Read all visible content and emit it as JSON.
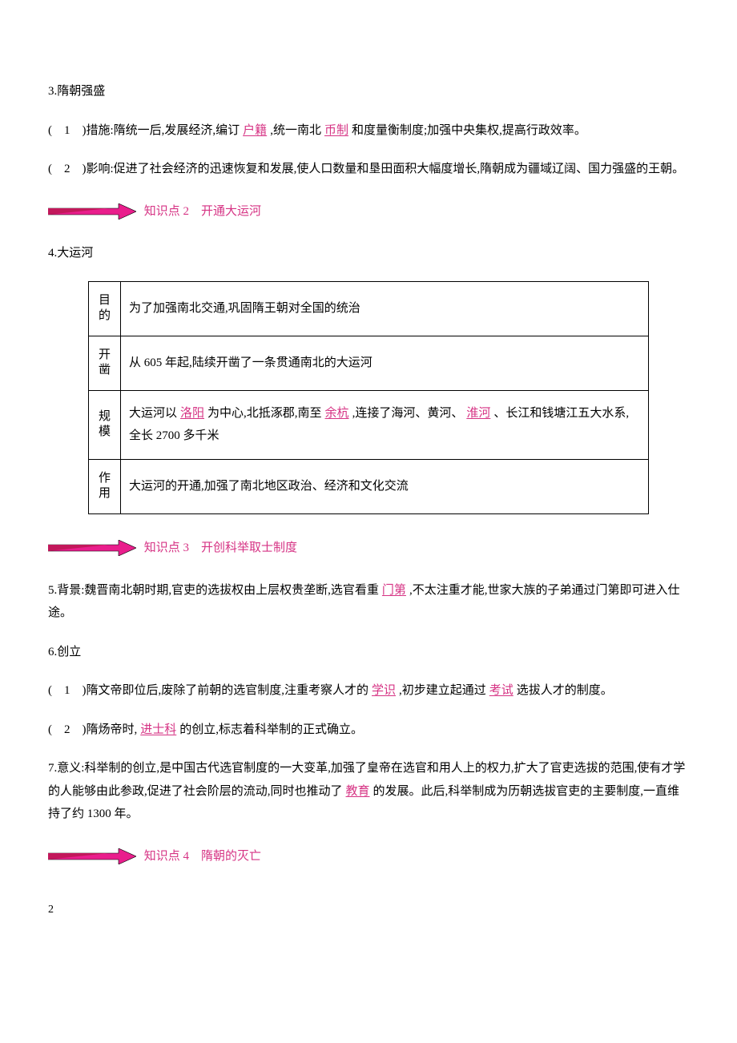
{
  "sec3": {
    "title": "3.隋朝强盛",
    "item1_prefix": "(　1　)措施:隋统一后,发展经济,编订",
    "blank1": "户籍",
    "item1_mid": ",统一南北",
    "blank2": "币制",
    "item1_suffix": "和度量衡制度;加强中央集权,提高行政效率。",
    "item2": "(　2　)影响:促进了社会经济的迅速恢复和发展,使人口数量和垦田面积大幅度增长,隋朝成为疆域辽阔、国力强盛的王朝。"
  },
  "kp2": {
    "label": "知识点 2　开通大运河"
  },
  "sec4": {
    "title": "4.大运河",
    "rows": [
      {
        "h": "目的",
        "c_parts": [
          [
            "为了加强南北交通,巩固隋王朝对全国的统治"
          ]
        ]
      },
      {
        "h": "开凿",
        "c_parts": [
          [
            "从 605 年起,陆续开凿了一条贯通南北的大运河"
          ]
        ]
      },
      {
        "h": "规模",
        "c_parts": [
          [
            "大运河以"
          ],
          [
            "洛阳",
            "blank"
          ],
          [
            "为中心,北抵涿郡,南至"
          ],
          [
            "余杭",
            "blank"
          ],
          [
            ",连接了海河、黄河、"
          ],
          [
            "淮河",
            "blank"
          ],
          [
            "、长江和钱塘江五大水系,全长 2700 多千米"
          ]
        ]
      },
      {
        "h": "作用",
        "c_parts": [
          [
            "大运河的开通,加强了南北地区政治、经济和文化交流"
          ]
        ]
      }
    ]
  },
  "kp3": {
    "label": "知识点 3　开创科举取士制度"
  },
  "sec5": {
    "prefix": "5.背景:魏晋南北朝时期,官吏的选拔权由上层权贵垄断,选官看重",
    "blank": "门第",
    "suffix": ",不太注重才能,世家大族的子弟通过门第即可进入仕途。"
  },
  "sec6": {
    "title": "6.创立",
    "item1_prefix": "(　1　)隋文帝即位后,废除了前朝的选官制度,注重考察人才的",
    "blank1": "学识",
    "item1_mid": ",初步建立起通过",
    "blank2": "考试",
    "item1_suffix": "选拔人才的制度。",
    "item2_prefix": "(　2　)隋炀帝时,",
    "blank3": "进士科",
    "item2_suffix": "的创立,标志着科举制的正式确立。"
  },
  "sec7": {
    "prefix": "7.意义:科举制的创立,是中国古代选官制度的一大变革,加强了皇帝在选官和用人上的权力,扩大了官吏选拔的范围,使有才学的人能够由此参政,促进了社会阶层的流动,同时也推动了",
    "blank": "教育",
    "suffix": "的发展。此后,科举制成为历朝选拔官吏的主要制度,一直维持了约 1300 年。"
  },
  "kp4": {
    "label": "知识点 4　隋朝的灭亡"
  },
  "page_num": "2",
  "marker": {
    "fill1": "#e91e8c",
    "fill2": "#c2185b",
    "stroke": "#000000"
  }
}
